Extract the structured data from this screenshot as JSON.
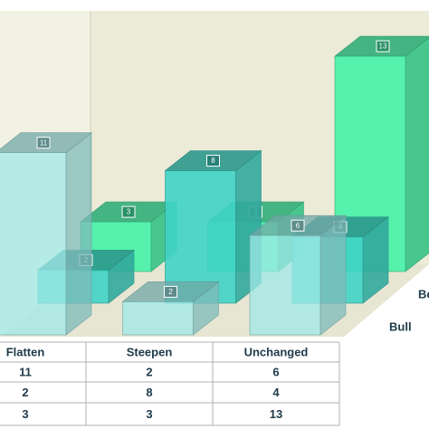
{
  "chart_data": {
    "type": "bar3d",
    "categories": [
      "Flatten",
      "Steepen",
      "Unchanged"
    ],
    "series": [
      {
        "color": "#9fe8e8",
        "values": [
          11,
          2,
          6
        ]
      },
      {
        "name": "Bull",
        "color": "#3fd3c4",
        "values": [
          2,
          8,
          4
        ]
      },
      {
        "name": "Be",
        "color": "#45f2a8",
        "values": [
          3,
          3,
          13
        ]
      }
    ],
    "data_table": true
  }
}
